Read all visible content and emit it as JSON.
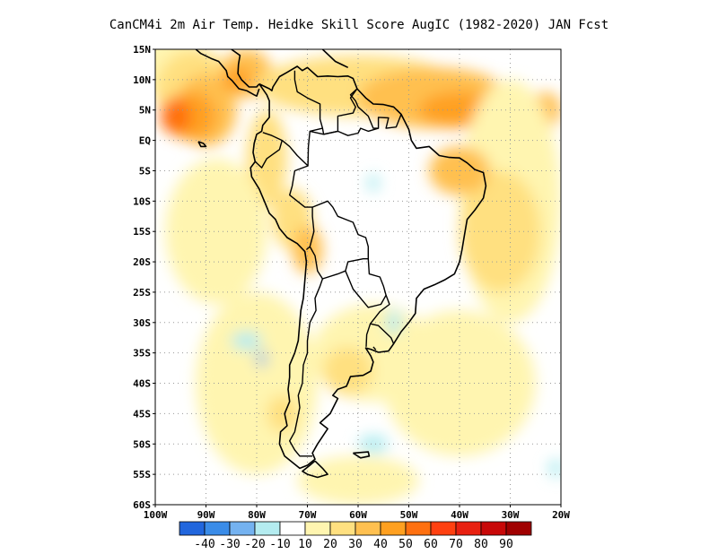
{
  "title": "CanCM4i  2m Air Temp. Heidke Skill Score AugIC (1982-2020) JAN Fcst",
  "map": {
    "lon_range": [
      -100,
      -20
    ],
    "lat_range": [
      -60,
      15
    ],
    "lat_ticks": [
      {
        "value": 15,
        "label": "15N"
      },
      {
        "value": 10,
        "label": "10N"
      },
      {
        "value": 5,
        "label": "5N"
      },
      {
        "value": 0,
        "label": "EQ"
      },
      {
        "value": -5,
        "label": "5S"
      },
      {
        "value": -10,
        "label": "10S"
      },
      {
        "value": -15,
        "label": "15S"
      },
      {
        "value": -20,
        "label": "20S"
      },
      {
        "value": -25,
        "label": "25S"
      },
      {
        "value": -30,
        "label": "30S"
      },
      {
        "value": -35,
        "label": "35S"
      },
      {
        "value": -40,
        "label": "40S"
      },
      {
        "value": -45,
        "label": "45S"
      },
      {
        "value": -50,
        "label": "50S"
      },
      {
        "value": -55,
        "label": "55S"
      },
      {
        "value": -60,
        "label": "60S"
      }
    ],
    "lon_ticks": [
      {
        "value": -100,
        "label": "100W"
      },
      {
        "value": -90,
        "label": "90W"
      },
      {
        "value": -80,
        "label": "80W"
      },
      {
        "value": -70,
        "label": "70W"
      },
      {
        "value": -60,
        "label": "60W"
      },
      {
        "value": -50,
        "label": "50W"
      },
      {
        "value": -40,
        "label": "40W"
      },
      {
        "value": -30,
        "label": "30W"
      },
      {
        "value": -20,
        "label": "20W"
      }
    ],
    "grid": true,
    "grid_style": "dotted"
  },
  "colorbar": {
    "colors": [
      "#2166dd",
      "#3a8ce8",
      "#74b2f0",
      "#b4ecf0",
      "#ffffff",
      "#fff5b0",
      "#ffe080",
      "#ffc050",
      "#ffa020",
      "#ff7010",
      "#ff4010",
      "#e82010",
      "#c80808",
      "#a00000"
    ],
    "labels": [
      "-40",
      "-30",
      "-20",
      "-10",
      "10",
      "20",
      "30",
      "40",
      "50",
      "60",
      "70",
      "80",
      "90"
    ]
  },
  "skill_regions": [
    {
      "color": "#fff5b0",
      "lon": -97,
      "lat": 12,
      "r_lon": 8,
      "r_lat": 5
    },
    {
      "color": "#ffe080",
      "lon": -92,
      "lat": 8,
      "r_lon": 8,
      "r_lat": 7
    },
    {
      "color": "#ffc050",
      "lon": -90,
      "lat": 5,
      "r_lon": 6,
      "r_lat": 6
    },
    {
      "color": "#ffa020",
      "lon": -93,
      "lat": 4,
      "r_lon": 5,
      "r_lat": 4
    },
    {
      "color": "#ff7010",
      "lon": -96,
      "lat": 4,
      "r_lon": 3,
      "r_lat": 3
    },
    {
      "color": "#ffc050",
      "lon": -82,
      "lat": 11,
      "r_lon": 5,
      "r_lat": 4
    },
    {
      "color": "#ffa020",
      "lon": -84,
      "lat": 10,
      "r_lon": 3,
      "r_lat": 2
    },
    {
      "color": "#ffe080",
      "lon": -78,
      "lat": -3,
      "r_lon": 4,
      "r_lat": 8
    },
    {
      "color": "#ffe080",
      "lon": -60,
      "lat": 9,
      "r_lon": 20,
      "r_lat": 5
    },
    {
      "color": "#ffc050",
      "lon": -45,
      "lat": 7,
      "r_lon": 15,
      "r_lat": 5
    },
    {
      "color": "#ffa020",
      "lon": -40,
      "lat": 5,
      "r_lon": 8,
      "r_lat": 3
    },
    {
      "color": "#ffc050",
      "lon": -23,
      "lat": 5,
      "r_lon": 3,
      "r_lat": 3
    },
    {
      "color": "#fff5b0",
      "lon": -30,
      "lat": -10,
      "r_lon": 10,
      "r_lat": 20
    },
    {
      "color": "#ffe080",
      "lon": -32,
      "lat": -15,
      "r_lon": 8,
      "r_lat": 10
    },
    {
      "color": "#ffc050",
      "lon": -40,
      "lat": -5,
      "r_lon": 6,
      "r_lat": 4
    },
    {
      "color": "#fff5b0",
      "lon": -88,
      "lat": -15,
      "r_lon": 10,
      "r_lat": 12
    },
    {
      "color": "#ffe080",
      "lon": -73,
      "lat": -13,
      "r_lon": 4,
      "r_lat": 5
    },
    {
      "color": "#ffc050",
      "lon": -70,
      "lat": -18,
      "r_lon": 3,
      "r_lat": 4
    },
    {
      "color": "#fff5b0",
      "lon": -57,
      "lat": -35,
      "r_lon": 12,
      "r_lat": 8
    },
    {
      "color": "#ffe080",
      "lon": -62,
      "lat": -38,
      "r_lon": 5,
      "r_lat": 4
    },
    {
      "color": "#fff5b0",
      "lon": -40,
      "lat": -40,
      "r_lon": 15,
      "r_lat": 12
    },
    {
      "color": "#fff5b0",
      "lon": -80,
      "lat": -40,
      "r_lon": 12,
      "r_lat": 15
    },
    {
      "color": "#ffe080",
      "lon": -75,
      "lat": -45,
      "r_lon": 3,
      "r_lat": 3
    },
    {
      "color": "#fff5b0",
      "lon": -60,
      "lat": -56,
      "r_lon": 12,
      "r_lat": 4
    },
    {
      "color": "#b4ecf0",
      "lon": -82,
      "lat": -33,
      "r_lon": 3,
      "r_lat": 1.5
    },
    {
      "color": "#74b2f0",
      "lon": -79,
      "lat": -36,
      "r_lon": 1,
      "r_lat": 1.2
    },
    {
      "color": "#b4ecf0",
      "lon": -57,
      "lat": -50,
      "r_lon": 3,
      "r_lat": 1.5
    },
    {
      "color": "#b4ecf0",
      "lon": -57,
      "lat": -7,
      "r_lon": 1.2,
      "r_lat": 1.5
    },
    {
      "color": "#b4ecf0",
      "lon": -53,
      "lat": -30,
      "r_lon": 1.5,
      "r_lat": 2
    },
    {
      "color": "#b4ecf0",
      "lon": -21,
      "lat": -54,
      "r_lon": 1.5,
      "r_lat": 1.5
    }
  ],
  "coastlines": [
    [
      [
        -79.5,
        9.3
      ],
      [
        -77.5,
        8.5
      ],
      [
        -77,
        8.2
      ],
      [
        -76.8,
        8.8
      ],
      [
        -75.5,
        10.5
      ],
      [
        -74,
        11.2
      ],
      [
        -72,
        12.2
      ],
      [
        -71,
        11.5
      ],
      [
        -70,
        12
      ],
      [
        -68,
        10.5
      ],
      [
        -66,
        10.6
      ],
      [
        -64,
        10.5
      ],
      [
        -62,
        10.6
      ],
      [
        -61,
        10.2
      ],
      [
        -60.2,
        8.5
      ],
      [
        -58.5,
        7
      ],
      [
        -57,
        6
      ],
      [
        -55,
        5.9
      ],
      [
        -53,
        5.5
      ],
      [
        -51.5,
        4.3
      ],
      [
        -50,
        1.8
      ],
      [
        -49.5,
        0
      ],
      [
        -48.5,
        -1.3
      ],
      [
        -46,
        -1
      ],
      [
        -44,
        -2.5
      ],
      [
        -42,
        -2.8
      ],
      [
        -40,
        -2.9
      ],
      [
        -38.5,
        -3.7
      ],
      [
        -37,
        -4.8
      ],
      [
        -35.3,
        -5.3
      ],
      [
        -34.8,
        -7.5
      ],
      [
        -35.3,
        -9.5
      ],
      [
        -37,
        -11.5
      ],
      [
        -38.5,
        -13
      ],
      [
        -39,
        -15.5
      ],
      [
        -39.5,
        -18
      ],
      [
        -40,
        -20
      ],
      [
        -41,
        -22
      ],
      [
        -43,
        -23
      ],
      [
        -45,
        -23.8
      ],
      [
        -47,
        -24.5
      ],
      [
        -48.5,
        -26
      ],
      [
        -48.7,
        -28.5
      ],
      [
        -50,
        -30
      ],
      [
        -51.5,
        -31.5
      ],
      [
        -53,
        -33.5
      ],
      [
        -54,
        -34.7
      ],
      [
        -56,
        -34.9
      ],
      [
        -57.5,
        -34.4
      ],
      [
        -58.5,
        -34.2
      ],
      [
        -57.5,
        -35.5
      ],
      [
        -57,
        -36.5
      ],
      [
        -57.5,
        -38
      ],
      [
        -59,
        -38.7
      ],
      [
        -61.5,
        -38.9
      ],
      [
        -62.3,
        -40.5
      ],
      [
        -64,
        -41
      ],
      [
        -65,
        -42
      ],
      [
        -64,
        -42.5
      ],
      [
        -65.5,
        -45
      ],
      [
        -67.5,
        -46.5
      ],
      [
        -66,
        -47.5
      ],
      [
        -68,
        -50
      ],
      [
        -69,
        -51.5
      ],
      [
        -68.5,
        -52.5
      ],
      [
        -70,
        -53.5
      ],
      [
        -71.5,
        -54
      ],
      [
        -73,
        -53
      ],
      [
        -74.5,
        -52
      ],
      [
        -75.5,
        -50
      ],
      [
        -75.3,
        -48
      ],
      [
        -74,
        -47
      ],
      [
        -74.5,
        -45
      ],
      [
        -73.5,
        -43
      ],
      [
        -73.8,
        -41
      ],
      [
        -73.5,
        -39
      ],
      [
        -73.5,
        -37
      ],
      [
        -72.5,
        -35
      ],
      [
        -71.8,
        -33
      ],
      [
        -71.5,
        -30
      ],
      [
        -71.3,
        -28
      ],
      [
        -70.8,
        -26
      ],
      [
        -70.5,
        -23
      ],
      [
        -70.2,
        -20
      ],
      [
        -70.5,
        -18.3
      ],
      [
        -72,
        -17
      ],
      [
        -74,
        -16
      ],
      [
        -75.5,
        -14.5
      ],
      [
        -76.3,
        -13
      ],
      [
        -77.5,
        -12
      ],
      [
        -78.5,
        -10
      ],
      [
        -79.5,
        -8
      ],
      [
        -81,
        -6
      ],
      [
        -81.2,
        -4.5
      ],
      [
        -80.3,
        -3.5
      ],
      [
        -80.7,
        -2
      ],
      [
        -80.5,
        -0.5
      ],
      [
        -80,
        1
      ],
      [
        -79,
        1.5
      ],
      [
        -78.8,
        2.5
      ],
      [
        -77.5,
        3.8
      ],
      [
        -77.5,
        6.5
      ],
      [
        -78,
        7.5
      ],
      [
        -79.5,
        9.3
      ]
    ],
    [
      [
        -67,
        15
      ],
      [
        -64.5,
        13
      ],
      [
        -62,
        12
      ]
    ],
    [
      [
        -85,
        15
      ],
      [
        -83.3,
        14
      ],
      [
        -83.6,
        12.5
      ],
      [
        -83.7,
        11
      ],
      [
        -83,
        10
      ],
      [
        -81.5,
        8.8
      ],
      [
        -80,
        8.8
      ],
      [
        -79.5,
        9.3
      ]
    ],
    [
      [
        -92,
        15
      ],
      [
        -91,
        14.3
      ],
      [
        -89,
        13.5
      ],
      [
        -87.5,
        13
      ],
      [
        -86,
        11.5
      ],
      [
        -85.7,
        10.5
      ],
      [
        -84.8,
        9.8
      ],
      [
        -83.5,
        8.5
      ],
      [
        -82,
        8.2
      ],
      [
        -80.5,
        7.5
      ],
      [
        -80,
        7.3
      ],
      [
        -79.5,
        8.5
      ]
    ],
    [
      [
        -68.5,
        -52.8
      ],
      [
        -67,
        -54
      ],
      [
        -66,
        -55
      ],
      [
        -68,
        -55.5
      ],
      [
        -70,
        -55
      ],
      [
        -71,
        -54.5
      ],
      [
        -69.5,
        -53.5
      ],
      [
        -68.5,
        -52.8
      ]
    ],
    [
      [
        -61,
        -51.5
      ],
      [
        -58,
        -51.3
      ],
      [
        -57.8,
        -52
      ],
      [
        -59.5,
        -52.3
      ],
      [
        -61,
        -51.5
      ]
    ],
    [
      [
        -91.5,
        -0.2
      ],
      [
        -90.5,
        -0.5
      ],
      [
        -90,
        -1
      ],
      [
        -91,
        -1
      ],
      [
        -91.5,
        -0.2
      ]
    ]
  ],
  "borders": [
    [
      [
        -72.5,
        11.5
      ],
      [
        -72.5,
        10
      ],
      [
        -72,
        8
      ],
      [
        -70,
        7
      ],
      [
        -67.5,
        6
      ],
      [
        -67.5,
        3.5
      ],
      [
        -67,
        2
      ],
      [
        -66.8,
        1
      ],
      [
        -64,
        1.5
      ],
      [
        -64,
        4
      ],
      [
        -61,
        4.5
      ],
      [
        -60.5,
        5.5
      ],
      [
        -61.5,
        7
      ],
      [
        -60.2,
        8.5
      ]
    ],
    [
      [
        -67,
        2
      ],
      [
        -69.5,
        1.5
      ],
      [
        -69.8,
        -1
      ],
      [
        -69.9,
        -4.2
      ],
      [
        -72,
        -2.5
      ],
      [
        -73.5,
        -1
      ],
      [
        -75,
        0
      ],
      [
        -77,
        0.8
      ],
      [
        -78.8,
        1.3
      ]
    ],
    [
      [
        -75,
        0
      ],
      [
        -75.5,
        -1.5
      ],
      [
        -78,
        -3
      ],
      [
        -79,
        -4.5
      ],
      [
        -80.3,
        -3.5
      ]
    ],
    [
      [
        -69.9,
        -4.2
      ],
      [
        -72.5,
        -5
      ],
      [
        -73,
        -7.5
      ],
      [
        -73.5,
        -9
      ],
      [
        -72,
        -10
      ],
      [
        -70.5,
        -11
      ],
      [
        -69,
        -11
      ],
      [
        -69,
        -12.5
      ],
      [
        -68.7,
        -15
      ],
      [
        -69.5,
        -17.5
      ],
      [
        -70.2,
        -18
      ]
    ],
    [
      [
        -69.5,
        -17.5
      ],
      [
        -68.5,
        -19
      ],
      [
        -68,
        -21.5
      ],
      [
        -67,
        -22.8
      ],
      [
        -67.5,
        -24
      ],
      [
        -68.5,
        -26
      ],
      [
        -68.3,
        -28
      ],
      [
        -69.5,
        -30
      ],
      [
        -70,
        -33
      ],
      [
        -70,
        -35
      ],
      [
        -70.8,
        -37
      ],
      [
        -71,
        -40
      ],
      [
        -71.8,
        -42
      ],
      [
        -71.5,
        -44
      ],
      [
        -72,
        -46
      ],
      [
        -72.5,
        -48
      ],
      [
        -73.5,
        -49.5
      ],
      [
        -72.5,
        -51
      ],
      [
        -71.5,
        -52
      ],
      [
        -69,
        -52
      ]
    ],
    [
      [
        -69,
        -11
      ],
      [
        -66,
        -10
      ],
      [
        -65,
        -11
      ],
      [
        -64,
        -12.5
      ],
      [
        -61,
        -13.5
      ],
      [
        -60,
        -15.5
      ],
      [
        -58.5,
        -16
      ],
      [
        -58,
        -17.5
      ],
      [
        -58,
        -19.5
      ],
      [
        -59,
        -19.5
      ],
      [
        -62,
        -20
      ],
      [
        -62.5,
        -21.5
      ],
      [
        -64,
        -22
      ],
      [
        -67,
        -22.8
      ]
    ],
    [
      [
        -58,
        -19.5
      ],
      [
        -57.8,
        -22
      ],
      [
        -55.7,
        -22.5
      ],
      [
        -55,
        -24
      ],
      [
        -54.5,
        -25.5
      ],
      [
        -55.5,
        -27
      ],
      [
        -58,
        -27.5
      ],
      [
        -59,
        -26.5
      ],
      [
        -61,
        -24.5
      ],
      [
        -62.5,
        -21.5
      ]
    ],
    [
      [
        -54.5,
        -25.5
      ],
      [
        -53.8,
        -27
      ],
      [
        -55.7,
        -28.2
      ],
      [
        -57.6,
        -30.2
      ],
      [
        -56,
        -30.5
      ],
      [
        -53.5,
        -32.5
      ],
      [
        -53,
        -33.5
      ]
    ],
    [
      [
        -57.6,
        -30.2
      ],
      [
        -58.3,
        -32
      ],
      [
        -58.4,
        -34
      ]
    ],
    [
      [
        -56.5,
        -34.5
      ],
      [
        -57,
        -34
      ]
    ],
    [
      [
        -60,
        5.5
      ],
      [
        -58,
        4
      ],
      [
        -57,
        2
      ],
      [
        -56,
        2
      ],
      [
        -56,
        3.8
      ],
      [
        -54,
        3.7
      ],
      [
        -54.5,
        2
      ],
      [
        -52.5,
        2.2
      ],
      [
        -51.5,
        4.3
      ]
    ],
    [
      [
        -69.5,
        1.5
      ],
      [
        -66.8,
        1
      ],
      [
        -64,
        1.5
      ],
      [
        -62,
        0.8
      ],
      [
        -60,
        1.2
      ],
      [
        -59.5,
        2
      ],
      [
        -58,
        1.5
      ],
      [
        -56,
        2
      ]
    ],
    [
      [
        -60.2,
        8.5
      ],
      [
        -61.5,
        7.5
      ],
      [
        -60.5,
        6.5
      ],
      [
        -60,
        5.5
      ]
    ]
  ]
}
